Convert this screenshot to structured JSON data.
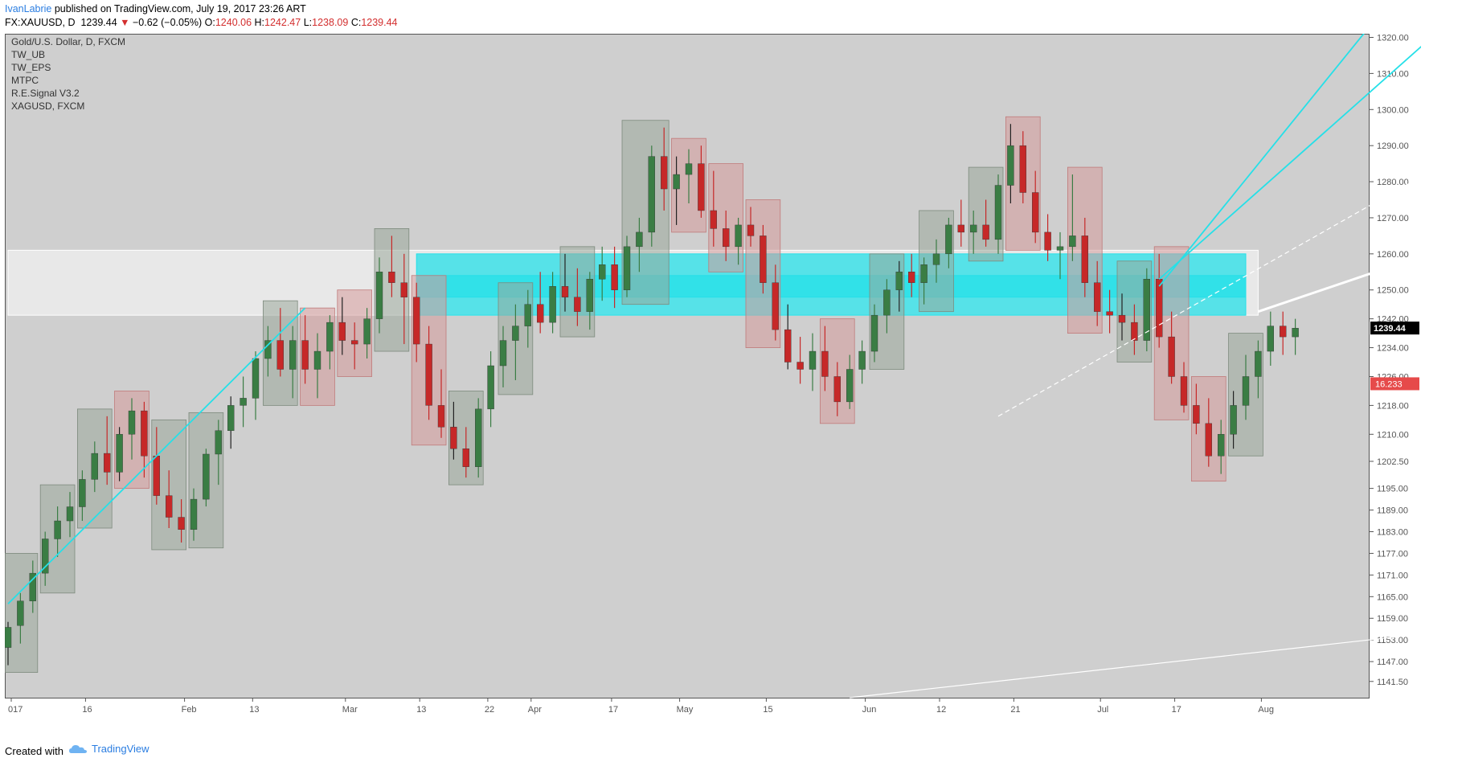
{
  "header": {
    "author": "IvanLabrie",
    "publish_text": "published on TradingView.com, July 19, 2017 23:26 ART",
    "symbol": "FX:XAUUSD, D",
    "last": "1239.44",
    "change_arrow": "▼",
    "change": "−0.62 (−0.05%)",
    "o_label": "O:",
    "o_value": "1240.06",
    "h_label": "H:",
    "h_value": "1242.47",
    "l_label": "L:",
    "l_value": "1238.09",
    "c_label": "C:",
    "c_value": "1239.44"
  },
  "legend": [
    "Gold/U.S. Dollar, D, FXCM",
    "TW_UB",
    "TW_EPS",
    "MTPC",
    "R.E.Signal V3.2",
    "XAGUSD, FXCM"
  ],
  "footer": {
    "created_with": "Created with",
    "brand": "TradingView"
  },
  "chart_data": {
    "type": "candlestick",
    "title": "Gold/U.S. Dollar, D, FXCM",
    "x_ticks": [
      "017",
      "16",
      "Feb",
      "13",
      "Mar",
      "13",
      "22",
      "Apr",
      "17",
      "May",
      "15",
      "Jun",
      "12",
      "21",
      "Jul",
      "17",
      "Aug"
    ],
    "y_ticks": [
      1320.0,
      1310.0,
      1300.0,
      1290.0,
      1280.0,
      1270.0,
      1260.0,
      1250.0,
      1242.0,
      1234.0,
      1226.0,
      1218.0,
      1210.0,
      1202.5,
      1195.0,
      1189.0,
      1183.0,
      1177.0,
      1171.0,
      1165.0,
      1159.0,
      1153.0,
      1147.0,
      1141.5
    ],
    "ylim": [
      1137,
      1321
    ],
    "last_price_label": "1239.44",
    "secondary_label": "16.233",
    "colors": {
      "up": "#3a7d44",
      "down": "#c62828",
      "cyan": "#25e0e8",
      "box_green": "#9aa79a",
      "box_red": "#d69a9a"
    },
    "ohlc": [
      [
        1150.9,
        1158.0,
        1146.0,
        1156.5
      ],
      [
        1157.0,
        1166.0,
        1152.0,
        1163.8
      ],
      [
        1163.8,
        1175.0,
        1160.5,
        1171.5
      ],
      [
        1171.5,
        1183.0,
        1168.0,
        1181.0
      ],
      [
        1181.0,
        1190.0,
        1176.0,
        1186.0
      ],
      [
        1186.0,
        1194.0,
        1181.5,
        1189.9
      ],
      [
        1189.9,
        1200.0,
        1186.0,
        1197.5
      ],
      [
        1197.5,
        1208.0,
        1194.0,
        1204.7
      ],
      [
        1204.7,
        1215.0,
        1196.0,
        1199.5
      ],
      [
        1199.5,
        1212.0,
        1197.0,
        1210.0
      ],
      [
        1210.0,
        1220.0,
        1203.0,
        1216.5
      ],
      [
        1216.5,
        1219.0,
        1198.0,
        1204.0
      ],
      [
        1204.0,
        1212.0,
        1190.5,
        1193.0
      ],
      [
        1193.0,
        1200.0,
        1184.0,
        1187.0
      ],
      [
        1187.0,
        1192.0,
        1180.0,
        1183.6
      ],
      [
        1183.6,
        1195.0,
        1180.5,
        1192.0
      ],
      [
        1192.0,
        1206.0,
        1190.0,
        1204.5
      ],
      [
        1204.5,
        1214.0,
        1196.0,
        1211.0
      ],
      [
        1211.0,
        1220.5,
        1206.0,
        1218.0
      ],
      [
        1218.0,
        1226.0,
        1212.0,
        1220.0
      ],
      [
        1220.0,
        1233.0,
        1214.0,
        1231.0
      ],
      [
        1231.0,
        1240.0,
        1226.0,
        1236.0
      ],
      [
        1236.0,
        1245.0,
        1226.0,
        1228.0
      ],
      [
        1228.0,
        1240.0,
        1220.0,
        1236.0
      ],
      [
        1236.0,
        1243.0,
        1224.0,
        1228.0
      ],
      [
        1228.0,
        1238.0,
        1220.0,
        1233.0
      ],
      [
        1233.0,
        1243.0,
        1228.0,
        1241.0
      ],
      [
        1241.0,
        1248.0,
        1232.0,
        1236.0
      ],
      [
        1236.0,
        1241.0,
        1228.0,
        1235.0
      ],
      [
        1235.0,
        1245.0,
        1231.0,
        1242.0
      ],
      [
        1242.0,
        1259.0,
        1238.0,
        1255.0
      ],
      [
        1255.0,
        1265.0,
        1248.0,
        1252.0
      ],
      [
        1252.0,
        1260.0,
        1235.0,
        1248.0
      ],
      [
        1248.0,
        1252.0,
        1230.0,
        1235.0
      ],
      [
        1235.0,
        1240.0,
        1214.0,
        1218.0
      ],
      [
        1218.0,
        1228.0,
        1209.0,
        1212.0
      ],
      [
        1212.0,
        1219.0,
        1203.0,
        1206.0
      ],
      [
        1206.0,
        1212.0,
        1198.0,
        1201.0
      ],
      [
        1201.0,
        1220.0,
        1198.0,
        1217.0
      ],
      [
        1217.0,
        1233.0,
        1212.0,
        1229.0
      ],
      [
        1229.0,
        1240.0,
        1223.0,
        1236.0
      ],
      [
        1236.0,
        1246.0,
        1225.0,
        1240.0
      ],
      [
        1240.0,
        1250.0,
        1234.0,
        1246.0
      ],
      [
        1246.0,
        1255.0,
        1238.0,
        1241.0
      ],
      [
        1241.0,
        1255.0,
        1238.0,
        1251.0
      ],
      [
        1251.0,
        1260.0,
        1244.0,
        1248.0
      ],
      [
        1248.0,
        1256.0,
        1240.0,
        1244.0
      ],
      [
        1244.0,
        1255.0,
        1239.0,
        1253.0
      ],
      [
        1253.0,
        1262.0,
        1247.0,
        1257.0
      ],
      [
        1257.0,
        1262.0,
        1245.0,
        1250.0
      ],
      [
        1250.0,
        1265.0,
        1248.0,
        1262.0
      ],
      [
        1262.0,
        1270.0,
        1255.0,
        1266.0
      ],
      [
        1266.0,
        1290.0,
        1262.0,
        1287.0
      ],
      [
        1287.0,
        1295.0,
        1272.0,
        1278.0
      ],
      [
        1278.0,
        1287.0,
        1268.0,
        1282.0
      ],
      [
        1282.0,
        1289.0,
        1274.0,
        1285.0
      ],
      [
        1285.0,
        1290.0,
        1270.0,
        1272.0
      ],
      [
        1272.0,
        1283.0,
        1262.0,
        1267.0
      ],
      [
        1267.0,
        1272.0,
        1258.0,
        1262.0
      ],
      [
        1262.0,
        1270.0,
        1257.0,
        1268.0
      ],
      [
        1268.0,
        1273.0,
        1262.0,
        1265.0
      ],
      [
        1265.0,
        1268.0,
        1249.0,
        1252.0
      ],
      [
        1252.0,
        1257.0,
        1236.0,
        1239.0
      ],
      [
        1239.0,
        1246.0,
        1228.0,
        1230.0
      ],
      [
        1230.0,
        1237.0,
        1224.0,
        1228.0
      ],
      [
        1228.0,
        1238.0,
        1222.0,
        1233.0
      ],
      [
        1233.0,
        1240.0,
        1222.0,
        1226.0
      ],
      [
        1226.0,
        1230.0,
        1215.0,
        1219.0
      ],
      [
        1219.0,
        1232.0,
        1217.0,
        1228.0
      ],
      [
        1228.0,
        1236.0,
        1224.0,
        1233.0
      ],
      [
        1233.0,
        1246.0,
        1230.0,
        1243.0
      ],
      [
        1243.0,
        1253.0,
        1238.0,
        1250.0
      ],
      [
        1250.0,
        1258.0,
        1244.0,
        1255.0
      ],
      [
        1255.0,
        1260.0,
        1248.0,
        1252.0
      ],
      [
        1252.0,
        1259.0,
        1246.0,
        1257.0
      ],
      [
        1257.0,
        1264.0,
        1252.0,
        1260.0
      ],
      [
        1260.0,
        1270.0,
        1256.0,
        1268.0
      ],
      [
        1268.0,
        1275.0,
        1262.0,
        1266.0
      ],
      [
        1266.0,
        1272.0,
        1260.0,
        1268.0
      ],
      [
        1268.0,
        1275.0,
        1262.0,
        1264.0
      ],
      [
        1264.0,
        1282.0,
        1260.0,
        1279.0
      ],
      [
        1279.0,
        1296.0,
        1274.0,
        1290.0
      ],
      [
        1290.0,
        1294.0,
        1274.0,
        1277.0
      ],
      [
        1277.0,
        1283.0,
        1263.0,
        1266.0
      ],
      [
        1266.0,
        1271.0,
        1258.0,
        1261.0
      ],
      [
        1261.0,
        1266.0,
        1253.0,
        1262.0
      ],
      [
        1262.0,
        1282.0,
        1258.0,
        1265.0
      ],
      [
        1265.0,
        1270.0,
        1248.0,
        1252.0
      ],
      [
        1252.0,
        1258.0,
        1240.0,
        1244.0
      ],
      [
        1244.0,
        1250.0,
        1238.0,
        1243.0
      ],
      [
        1243.0,
        1249.0,
        1236.0,
        1241.0
      ],
      [
        1241.0,
        1246.0,
        1232.0,
        1236.0
      ],
      [
        1236.0,
        1256.0,
        1233.0,
        1253.0
      ],
      [
        1253.0,
        1260.0,
        1234.0,
        1237.0
      ],
      [
        1237.0,
        1244.0,
        1224.0,
        1226.0
      ],
      [
        1226.0,
        1230.0,
        1216.0,
        1218.0
      ],
      [
        1218.0,
        1224.0,
        1210.0,
        1213.0
      ],
      [
        1213.0,
        1220.0,
        1201.0,
        1204.0
      ],
      [
        1204.0,
        1214.0,
        1199.0,
        1210.0
      ],
      [
        1210.0,
        1222.0,
        1206.0,
        1218.0
      ],
      [
        1218.0,
        1232.0,
        1214.0,
        1226.0
      ],
      [
        1226.0,
        1236.0,
        1220.0,
        1233.0
      ],
      [
        1233.0,
        1244.0,
        1229.0,
        1240.0
      ],
      [
        1240.0,
        1244.0,
        1232.0,
        1237.0
      ],
      [
        1237.0,
        1242.0,
        1232.0,
        1239.4
      ]
    ],
    "overlay_boxes": [
      {
        "type": "range-band",
        "x0": 0,
        "x1": 101,
        "y_top": 1261,
        "y_bottom": 1243,
        "color": "#ececec"
      },
      {
        "type": "support-zone",
        "x0": 33,
        "x1": 100,
        "y_top": 1260,
        "y_bottom": 1243,
        "color": "#25e0e8"
      },
      {
        "type": "support-zone",
        "x0": 33,
        "x1": 100,
        "y_top": 1254,
        "y_bottom": 1248,
        "color": "#25e0e8"
      }
    ],
    "trendlines": [
      {
        "name": "cyan-trend-1",
        "from": [
          0,
          1163
        ],
        "to": [
          24,
          1245
        ]
      },
      {
        "name": "cyan-trend-2",
        "from": [
          93,
          1251
        ],
        "to": [
          110,
          1323
        ]
      },
      {
        "name": "cyan-trend-3",
        "from": [
          93,
          1253
        ],
        "to": [
          116,
          1323
        ]
      },
      {
        "name": "white-resistance",
        "from": [
          101,
          1244
        ],
        "to": [
          144,
          1294
        ]
      },
      {
        "name": "white-long-support",
        "from": [
          68,
          1137
        ],
        "to": [
          144,
          1166
        ]
      },
      {
        "name": "dashed-channel",
        "from": [
          80,
          1215
        ],
        "to": [
          135,
          1322
        ]
      }
    ]
  }
}
